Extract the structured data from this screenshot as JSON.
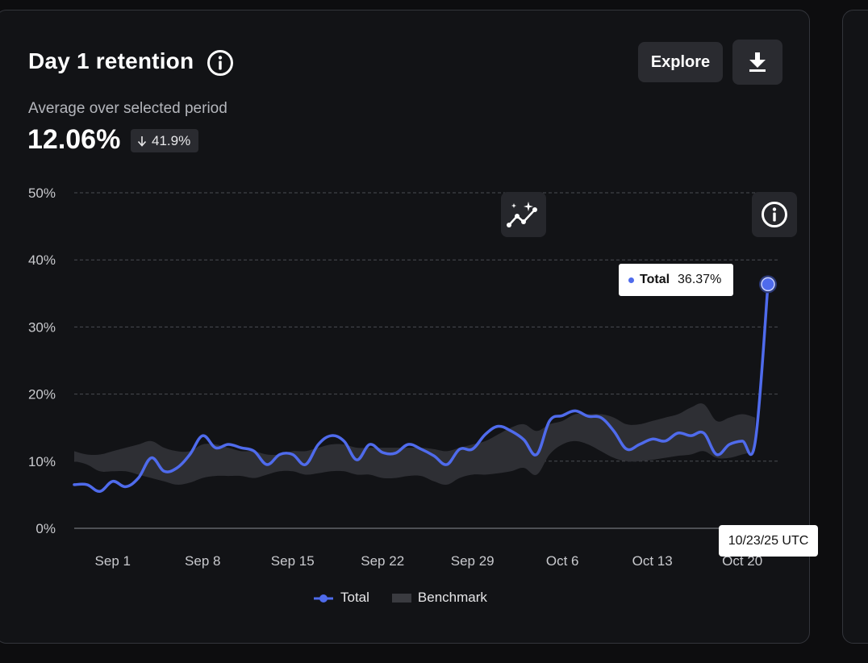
{
  "card": {
    "title": "Day 1 retention",
    "subtitle": "Average over selected period",
    "value": "12.06%",
    "delta": "41.9%",
    "delta_direction_icon": "arrow-down-icon",
    "explore_label": "Explore",
    "download_icon": "download-icon",
    "info_icon": "info-icon",
    "insights_icon": "sparkle-trend-icon"
  },
  "tooltip": {
    "series": "Total",
    "value": "36.37%"
  },
  "hover_date": "10/23/25 UTC",
  "legend": {
    "total": "Total",
    "benchmark": "Benchmark"
  },
  "colors": {
    "total": "#4f6bec",
    "benchmark": "#2e2f34",
    "grid": "#4a4c52",
    "text": "#c9cace"
  },
  "chart_data": {
    "type": "line",
    "x_start": "2025-08-29",
    "x_end": "2025-10-23",
    "x_tick_labels": [
      "Sep 1",
      "Sep 8",
      "Sep 15",
      "Sep 22",
      "Sep 29",
      "Oct 6",
      "Oct 13",
      "Oct 20"
    ],
    "y_tick_labels": [
      "0%",
      "10%",
      "20%",
      "30%",
      "40%",
      "50%"
    ],
    "y_ticks": [
      0,
      10,
      20,
      30,
      40,
      50
    ],
    "ylim": [
      0,
      50
    ],
    "grid": "horizontal-dashed",
    "legend_position": "bottom-center",
    "series": [
      {
        "name": "Total",
        "values": [
          6.5,
          6.5,
          5.5,
          7.0,
          6.2,
          7.5,
          10.5,
          8.5,
          9.0,
          11.0,
          13.8,
          12.0,
          12.5,
          12.0,
          11.5,
          9.5,
          11.0,
          11.0,
          9.5,
          12.5,
          13.8,
          13.0,
          10.2,
          12.5,
          11.3,
          11.2,
          12.5,
          11.8,
          10.8,
          9.5,
          11.8,
          11.8,
          14.0,
          15.2,
          14.5,
          13.2,
          11.0,
          16.0,
          16.8,
          17.5,
          16.7,
          16.5,
          14.5,
          11.8,
          12.5,
          13.3,
          13.0,
          14.2,
          13.8,
          14.2,
          11.0,
          12.5,
          13.0,
          12.8,
          36.37
        ]
      }
    ],
    "benchmark_band": {
      "name": "Benchmark",
      "lower": [
        10.0,
        9.5,
        8.5,
        8.5,
        8.5,
        8.0,
        7.5,
        7.0,
        6.5,
        6.8,
        7.5,
        7.8,
        7.8,
        7.8,
        7.5,
        8.0,
        8.5,
        8.5,
        8.0,
        8.2,
        8.5,
        8.5,
        8.0,
        8.0,
        7.5,
        7.5,
        7.8,
        7.8,
        7.0,
        6.5,
        7.5,
        8.0,
        8.0,
        8.2,
        8.5,
        9.0,
        8.0,
        11.0,
        12.5,
        13.0,
        12.5,
        11.5,
        10.5,
        10.0,
        10.0,
        10.2,
        10.5,
        10.8,
        11.0,
        11.5,
        10.5,
        10.5,
        11.0,
        11.5,
        11.5
      ],
      "upper": [
        11.5,
        11.0,
        11.0,
        11.5,
        12.0,
        12.5,
        13.0,
        12.0,
        11.5,
        11.5,
        12.5,
        12.5,
        12.0,
        11.5,
        11.5,
        11.0,
        11.0,
        11.5,
        11.5,
        12.0,
        12.5,
        12.5,
        12.0,
        12.0,
        12.0,
        12.0,
        12.0,
        12.0,
        11.8,
        11.5,
        12.0,
        12.5,
        13.0,
        14.0,
        15.0,
        15.5,
        14.5,
        15.5,
        16.0,
        17.0,
        17.0,
        17.0,
        16.5,
        15.5,
        15.5,
        16.0,
        16.5,
        17.0,
        18.0,
        18.5,
        16.0,
        16.5,
        17.0,
        16.5,
        16.5
      ]
    }
  }
}
